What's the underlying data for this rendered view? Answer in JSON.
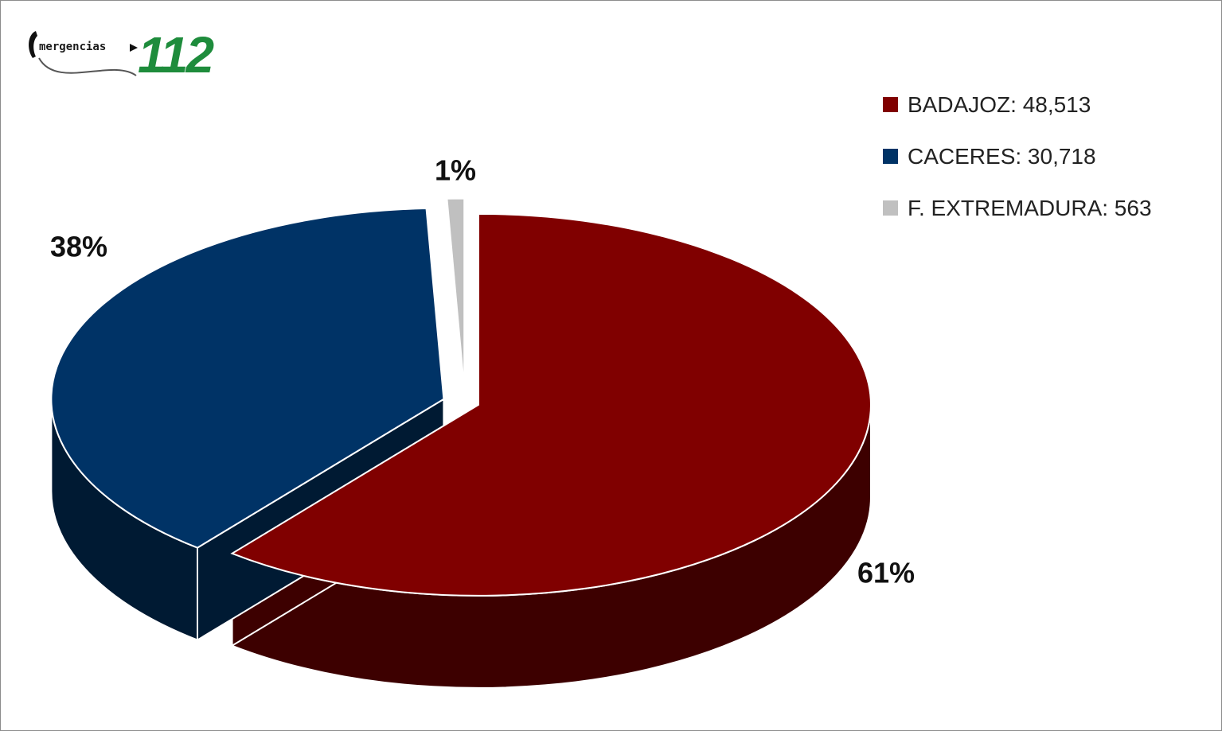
{
  "logo": {
    "text": "mergencias",
    "number": "112"
  },
  "chart_data": {
    "type": "pie",
    "style": "3d-exploded",
    "categories": [
      "BADAJOZ",
      "CACERES",
      "F. EXTREMADURA"
    ],
    "values": [
      48513,
      30718,
      563
    ],
    "percent_labels": [
      "61%",
      "38%",
      "1%"
    ],
    "legend": [
      "BADAJOZ: 48,513",
      "CACERES: 30,718",
      "F. EXTREMADURA: 563"
    ],
    "legend_position": "top-right",
    "colors": [
      "#800000",
      "#003366",
      "#c0c0c0"
    ],
    "side_colors": [
      "#3d0000",
      "#001a33",
      "#6b6b6b"
    ]
  }
}
